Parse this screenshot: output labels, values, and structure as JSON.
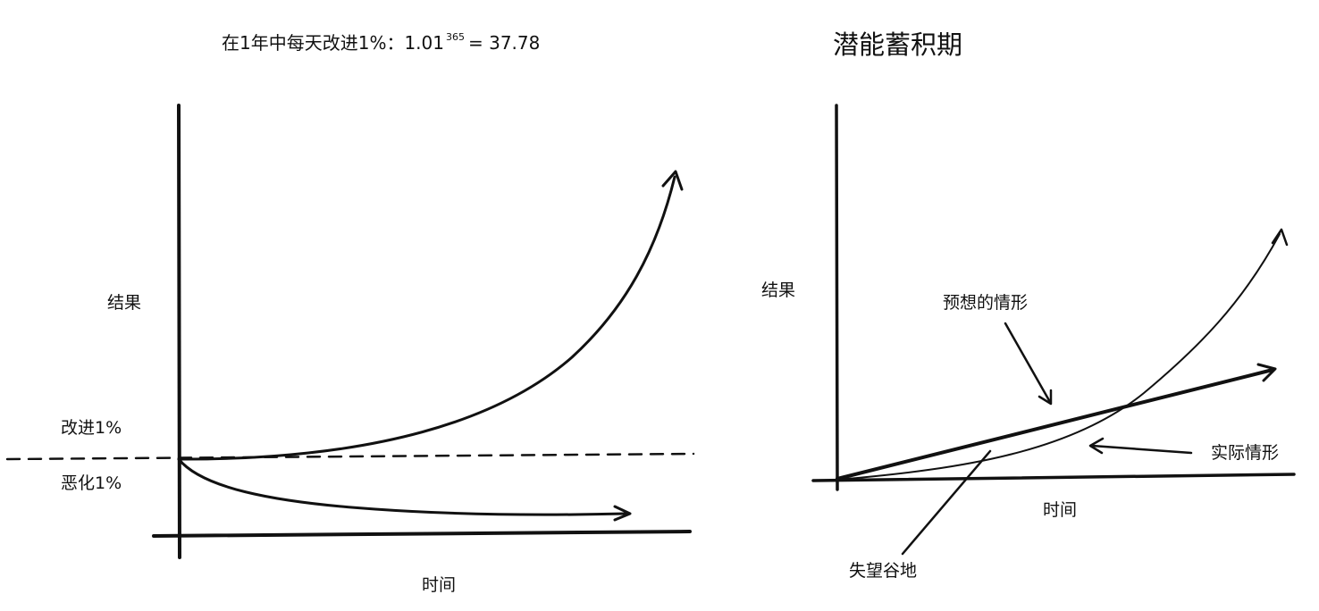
{
  "left_panel": {
    "title_prefix": "在1年中每天改进1%：1.01",
    "title_exponent": "365",
    "title_suffix": "= 37.78",
    "y_label": "结果",
    "x_label": "时间",
    "improve_label": "改进1%",
    "worsen_label": "恶化1%"
  },
  "right_panel": {
    "title": "潜能蓄积期",
    "y_label": "结果",
    "x_label": "时间",
    "expected_label": "预想的情形",
    "actual_label": "实际情形",
    "valley_label": "失望谷地"
  },
  "colors": {
    "ink": "#111111",
    "background": "#ffffff"
  }
}
